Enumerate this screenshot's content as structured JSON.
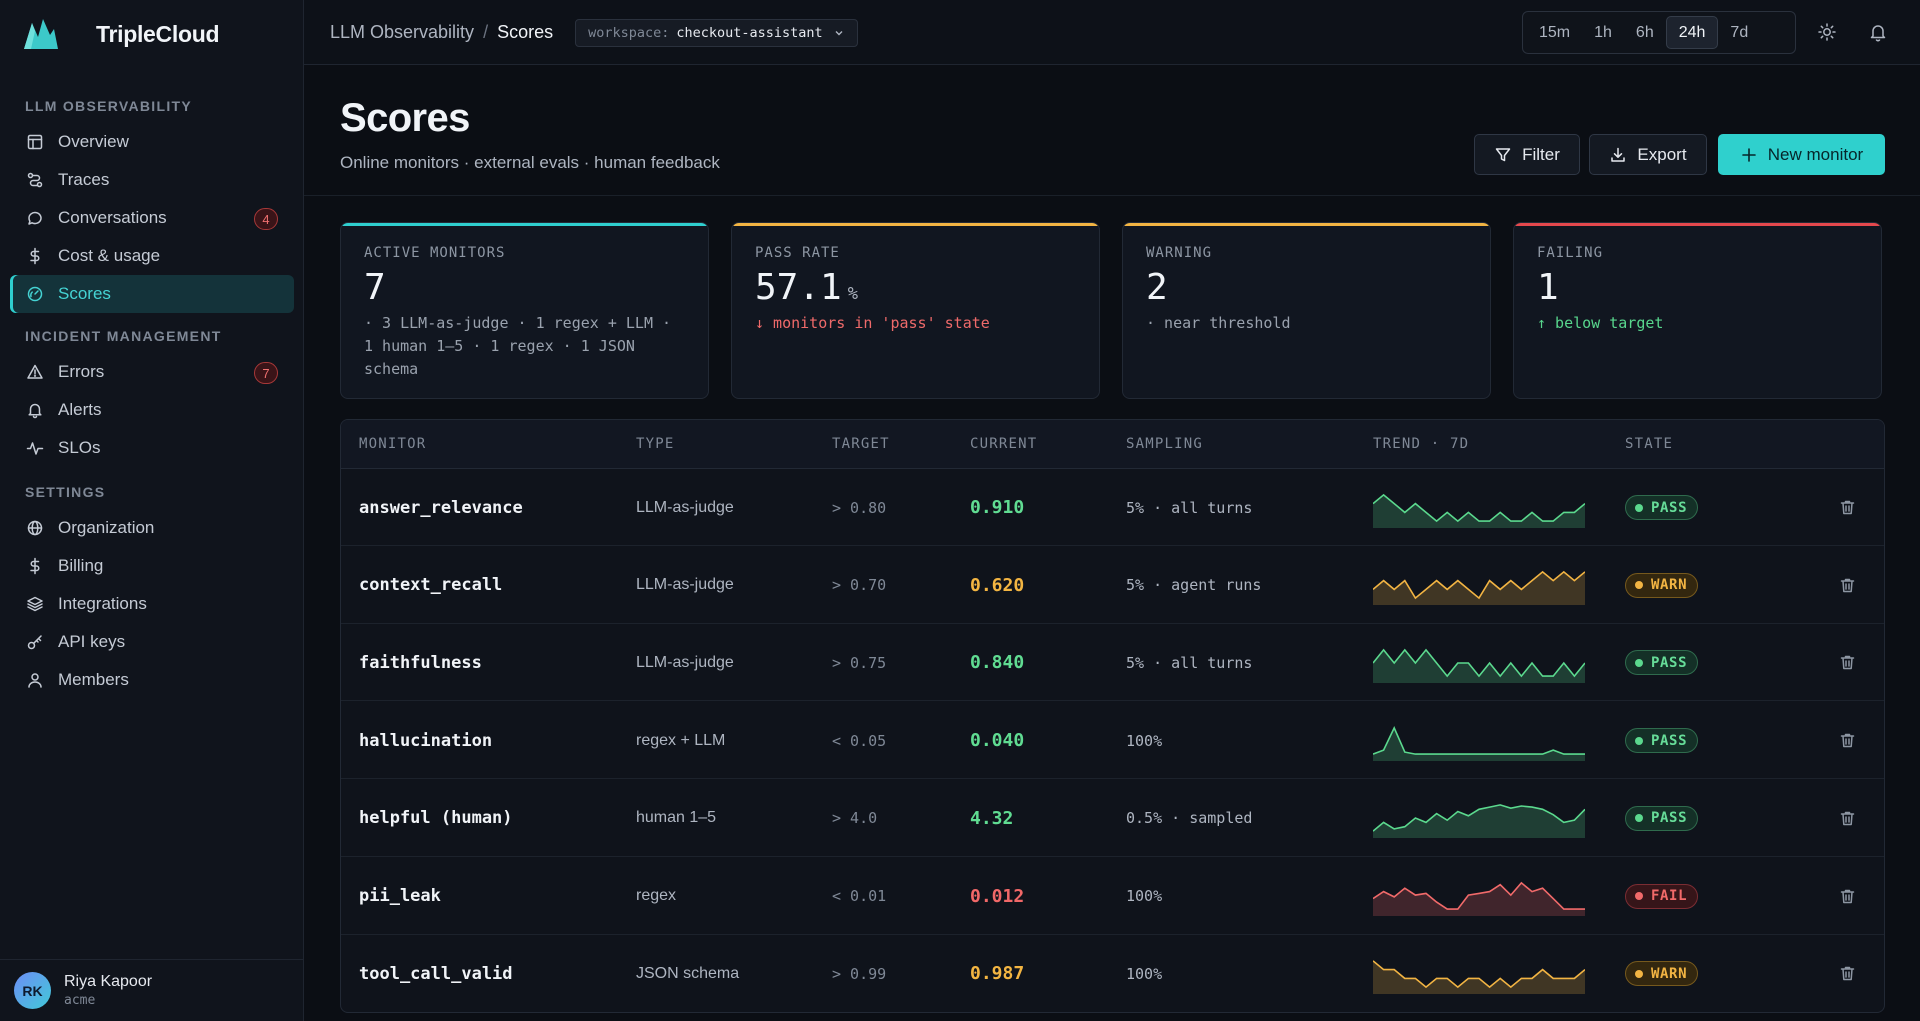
{
  "app": {
    "name": "TripleCloud"
  },
  "sidebar": {
    "sections": [
      {
        "heading": "LLM OBSERVABILITY",
        "items": [
          {
            "label": "Overview",
            "icon": "layout-icon"
          },
          {
            "label": "Traces",
            "icon": "route-icon"
          },
          {
            "label": "Conversations",
            "icon": "chat-icon",
            "badge": "4"
          },
          {
            "label": "Cost & usage",
            "icon": "dollar-icon"
          },
          {
            "label": "Scores",
            "icon": "gauge-icon",
            "active": true
          }
        ]
      },
      {
        "heading": "INCIDENT MANAGEMENT",
        "items": [
          {
            "label": "Errors",
            "icon": "warning-icon",
            "badge": "7"
          },
          {
            "label": "Alerts",
            "icon": "bell-icon"
          },
          {
            "label": "SLOs",
            "icon": "pulse-icon"
          }
        ]
      },
      {
        "heading": "SETTINGS",
        "items": [
          {
            "label": "Organization",
            "icon": "globe-icon"
          },
          {
            "label": "Billing",
            "icon": "dollar-icon"
          },
          {
            "label": "Integrations",
            "icon": "layers-icon"
          },
          {
            "label": "API keys",
            "icon": "key-icon"
          },
          {
            "label": "Members",
            "icon": "user-icon"
          }
        ]
      }
    ],
    "user": {
      "initials": "RK",
      "name": "Riya Kapoor",
      "org": "acme"
    }
  },
  "header": {
    "breadcrumb": [
      "LLM Observability",
      "Scores"
    ],
    "breadcrumb_sep": "/",
    "workspace": {
      "key": "workspace:",
      "value": "checkout-assistant"
    },
    "time_ranges": [
      "15m",
      "1h",
      "6h",
      "24h",
      "7d"
    ],
    "active_range": "24h"
  },
  "page": {
    "title": "Scores",
    "subtitle": "Online monitors · external evals · human feedback",
    "buttons": {
      "filter": "Filter",
      "export": "Export",
      "new_monitor": "New monitor"
    }
  },
  "stats": [
    {
      "label": "ACTIVE MONITORS",
      "value": "7",
      "unit": "",
      "note": "· 3 LLM-as-judge · 1 regex + LLM · 1 human 1–5 · 1 regex · 1 JSON schema",
      "note_style": "plain",
      "accent": "#2fcfcf"
    },
    {
      "label": "PASS RATE",
      "value": "57.1",
      "unit": "%",
      "note": "↓ monitors in 'pass' state",
      "note_style": "red",
      "accent": "#f2b443"
    },
    {
      "label": "WARNING",
      "value": "2",
      "unit": "",
      "note": "· near threshold",
      "note_style": "plain",
      "accent": "#f2b443"
    },
    {
      "label": "FAILING",
      "value": "1",
      "unit": "",
      "note": "↑ below target",
      "note_style": "green",
      "accent": "#e5484d"
    }
  ],
  "table": {
    "columns": [
      "MONITOR",
      "TYPE",
      "TARGET",
      "CURRENT",
      "SAMPLING",
      "TREND · 7D",
      "STATE"
    ],
    "rows": [
      {
        "monitor": "answer_relevance",
        "type": "LLM-as-judge",
        "target": "> 0.80",
        "current": "0.910",
        "sampling": "5% · all turns",
        "state": "PASS",
        "trend": [
          0.92,
          0.93,
          0.92,
          0.91,
          0.92,
          0.91,
          0.9,
          0.91,
          0.9,
          0.91,
          0.9,
          0.9,
          0.91,
          0.9,
          0.9,
          0.91,
          0.9,
          0.9,
          0.91,
          0.91,
          0.92
        ]
      },
      {
        "monitor": "context_recall",
        "type": "LLM-as-judge",
        "target": "> 0.70",
        "current": "0.620",
        "sampling": "5% · agent runs",
        "state": "WARN",
        "trend": [
          0.64,
          0.65,
          0.64,
          0.65,
          0.63,
          0.64,
          0.65,
          0.64,
          0.65,
          0.64,
          0.63,
          0.65,
          0.64,
          0.65,
          0.64,
          0.65,
          0.66,
          0.65,
          0.66,
          0.65,
          0.66
        ]
      },
      {
        "monitor": "faithfulness",
        "type": "LLM-as-judge",
        "target": "> 0.75",
        "current": "0.840",
        "sampling": "5% · all turns",
        "state": "PASS",
        "trend": [
          0.85,
          0.86,
          0.85,
          0.86,
          0.85,
          0.86,
          0.85,
          0.84,
          0.85,
          0.85,
          0.84,
          0.85,
          0.84,
          0.85,
          0.84,
          0.85,
          0.84,
          0.84,
          0.85,
          0.84,
          0.85
        ]
      },
      {
        "monitor": "hallucination",
        "type": "regex + LLM",
        "target": "< 0.05",
        "current": "0.040",
        "sampling": "100%",
        "state": "PASS",
        "trend": [
          0.0,
          0.02,
          0.13,
          0.01,
          0.0,
          0.0,
          0.0,
          0.0,
          0.0,
          0.0,
          0.0,
          0.0,
          0.0,
          0.0,
          0.0,
          0.0,
          0.0,
          0.02,
          0.0,
          0.0,
          0.0
        ]
      },
      {
        "monitor": "helpful (human)",
        "type": "human 1–5",
        "target": "> 4.0",
        "current": "4.32",
        "sampling": "0.5% · sampled",
        "state": "PASS",
        "trend": [
          4.2,
          4.28,
          4.22,
          4.24,
          4.32,
          4.28,
          4.36,
          4.3,
          4.38,
          4.34,
          4.4,
          4.42,
          4.44,
          4.41,
          4.43,
          4.42,
          4.4,
          4.35,
          4.28,
          4.3,
          4.4
        ]
      },
      {
        "monitor": "pii_leak",
        "type": "regex",
        "target": "< 0.01",
        "current": "0.012",
        "sampling": "100%",
        "state": "FAIL",
        "trend": [
          0.012,
          0.016,
          0.013,
          0.018,
          0.014,
          0.015,
          0.01,
          0.006,
          0.006,
          0.014,
          0.015,
          0.016,
          0.02,
          0.014,
          0.021,
          0.016,
          0.018,
          0.012,
          0.006,
          0.006,
          0.006
        ]
      },
      {
        "monitor": "tool_call_valid",
        "type": "JSON schema",
        "target": "> 0.99",
        "current": "0.987",
        "sampling": "100%",
        "state": "WARN",
        "trend": [
          0.989,
          0.988,
          0.988,
          0.987,
          0.987,
          0.986,
          0.987,
          0.987,
          0.986,
          0.987,
          0.987,
          0.986,
          0.987,
          0.986,
          0.987,
          0.987,
          0.988,
          0.987,
          0.987,
          0.987,
          0.988
        ]
      }
    ]
  },
  "colors": {
    "pass": "#5bd98e",
    "warn": "#f2b443",
    "fail": "#f16a6a",
    "accent": "#2fd0cd"
  }
}
